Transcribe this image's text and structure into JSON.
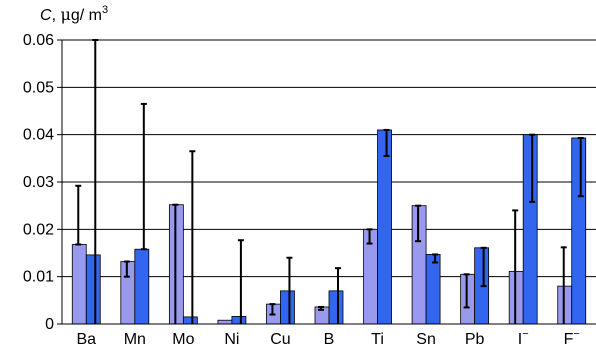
{
  "chart_data": {
    "type": "bar",
    "y_title": {
      "symbol": "C",
      "unit_prefix": ", ",
      "mu": "μ",
      "unit_rest": "g/ m",
      "exponent": "3"
    },
    "categories": [
      {
        "base": "Ba",
        "sup": ""
      },
      {
        "base": "Mn",
        "sup": ""
      },
      {
        "base": "Mo",
        "sup": ""
      },
      {
        "base": "Ni",
        "sup": ""
      },
      {
        "base": "Cu",
        "sup": ""
      },
      {
        "base": "B",
        "sup": ""
      },
      {
        "base": "Ti",
        "sup": ""
      },
      {
        "base": "Sn",
        "sup": ""
      },
      {
        "base": "Pb",
        "sup": ""
      },
      {
        "base": "I",
        "sup": "−"
      },
      {
        "base": "F",
        "sup": "−"
      }
    ],
    "ylim": [
      0,
      0.06
    ],
    "yticks": [
      "0",
      "0.01",
      "0.02",
      "0.03",
      "0.04",
      "0.05",
      "0.06"
    ],
    "ytick_values": [
      0,
      0.01,
      0.02,
      0.03,
      0.04,
      0.05,
      0.06
    ],
    "grid": true,
    "series": [
      {
        "color": "#9999ee",
        "values": [
          0.0168,
          0.0132,
          0.0252,
          0.0008,
          0.0042,
          0.0036,
          0.02,
          0.025,
          0.0105,
          0.0111,
          0.008
        ],
        "err_low": [
          0.0168,
          0.01,
          0.0,
          0.0008,
          0.002,
          0.003,
          0.017,
          0.0175,
          0.0035,
          0.0,
          0.0
        ],
        "err_high": [
          0.0292,
          0.0132,
          0.0252,
          0.0008,
          0.0042,
          0.0036,
          0.02,
          0.025,
          0.0105,
          0.024,
          0.0162
        ]
      },
      {
        "color": "#3366ee",
        "values": [
          0.0146,
          0.0158,
          0.0015,
          0.0016,
          0.007,
          0.007,
          0.041,
          0.0147,
          0.0161,
          0.04,
          0.0393
        ],
        "err_low": [
          0.0,
          0.0158,
          0.0,
          0.0,
          0.0,
          0.0,
          0.0355,
          0.013,
          0.008,
          0.0258,
          0.027
        ],
        "err_high": [
          0.06,
          0.0465,
          0.0365,
          0.0177,
          0.014,
          0.0118,
          0.041,
          0.0147,
          0.0161,
          0.04,
          0.0393
        ]
      }
    ]
  }
}
